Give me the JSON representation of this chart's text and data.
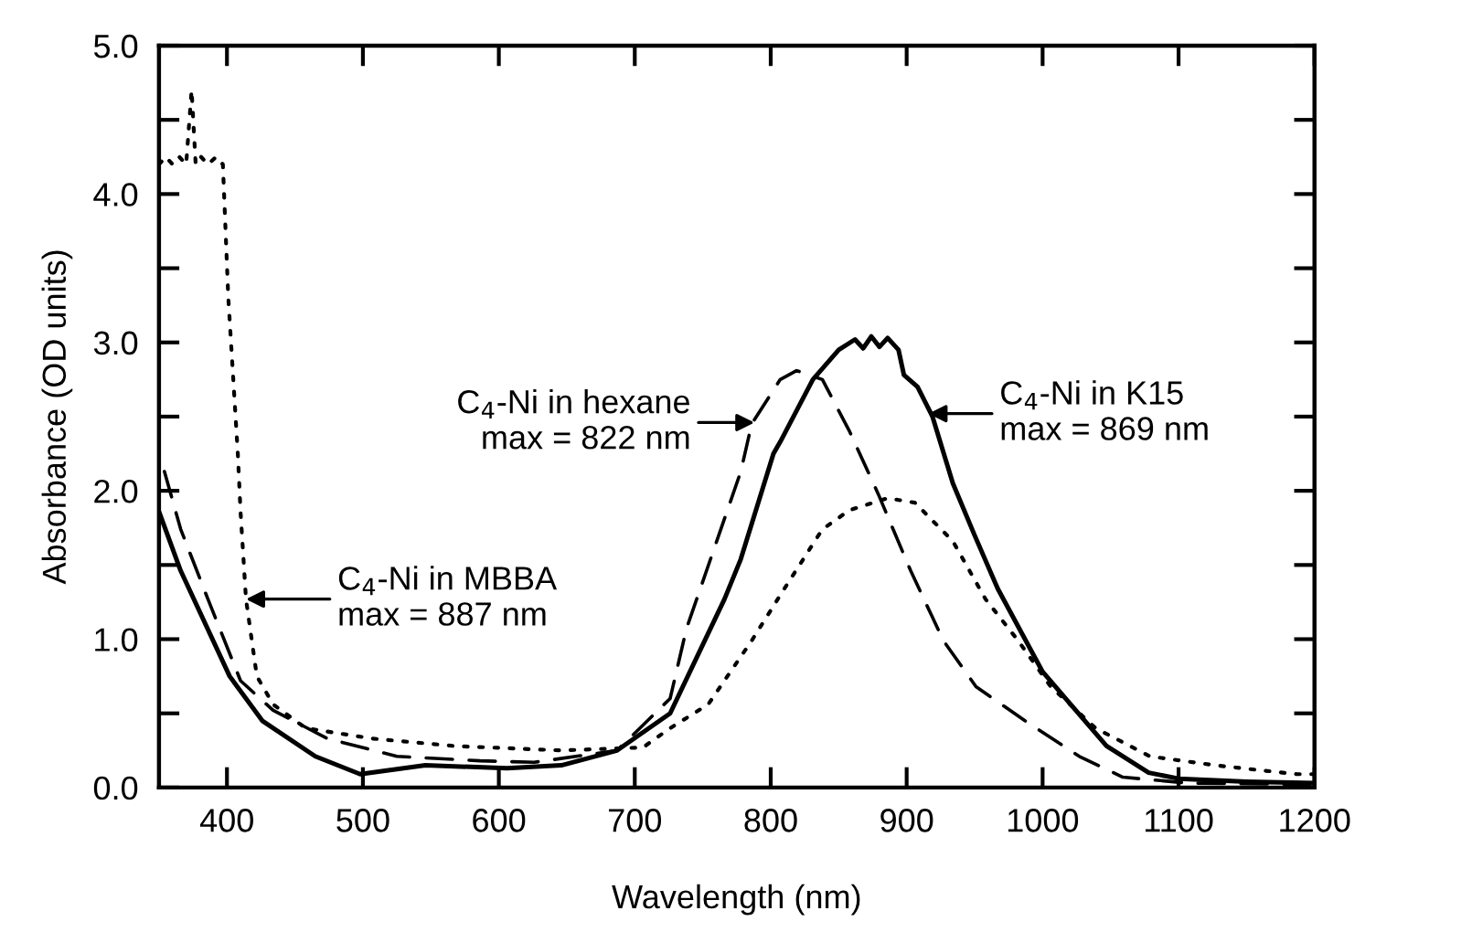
{
  "chart_data": {
    "type": "line",
    "xlabel": "Wavelength (nm)",
    "ylabel": "Absorbance (OD units)",
    "xlim": [
      350,
      1200
    ],
    "xticks": [
      400,
      500,
      600,
      700,
      800,
      900,
      1000,
      1100,
      1200
    ],
    "ylim": [
      0,
      5
    ],
    "yticks": [
      {
        "value": 0,
        "label": "0.0"
      },
      {
        "value": 0.5,
        "label": null
      },
      {
        "value": 1,
        "label": "1.0"
      },
      {
        "value": 1.5,
        "label": null
      },
      {
        "value": 2,
        "label": "2.0"
      },
      {
        "value": 2.5,
        "label": null
      },
      {
        "value": 3,
        "label": "3.0"
      },
      {
        "value": 3.5,
        "label": null
      },
      {
        "value": 4,
        "label": "4.0"
      },
      {
        "value": 4.5,
        "label": null
      },
      {
        "value": 5,
        "label": "5.0"
      }
    ],
    "grid": false,
    "marker": "none",
    "series": [
      {
        "color": "#000000",
        "line_style": "solid",
        "x": [
          350,
          366,
          402,
          426,
          465,
          498,
          546,
          606,
          646,
          687,
          726,
          766,
          778,
          802,
          807,
          831,
          850,
          862,
          868,
          874,
          880,
          886,
          894,
          898,
          908,
          919,
          934,
          950,
          967,
          1000,
          1047,
          1078,
          1100,
          1150,
          1200
        ],
        "values": [
          1.86,
          1.46,
          0.75,
          0.45,
          0.21,
          0.09,
          0.15,
          0.13,
          0.15,
          0.25,
          0.5,
          1.27,
          1.54,
          2.25,
          2.33,
          2.75,
          2.95,
          3.02,
          2.96,
          3.04,
          2.97,
          3.03,
          2.95,
          2.78,
          2.7,
          2.5,
          2.05,
          1.7,
          1.34,
          0.78,
          0.28,
          0.1,
          0.06,
          0.04,
          0.03
        ]
      },
      {
        "color": "#000000",
        "line_style": "dashed",
        "x": [
          354,
          366,
          386,
          410,
          434,
          474,
          525,
          586,
          626,
          687,
          726,
          738,
          778,
          786,
          807,
          819,
          838,
          858,
          879,
          903,
          927,
          951,
          987,
          1027,
          1059,
          1107,
          1200
        ],
        "values": [
          2.13,
          1.74,
          1.27,
          0.72,
          0.52,
          0.33,
          0.21,
          0.18,
          0.17,
          0.25,
          0.6,
          1.07,
          2.13,
          2.45,
          2.75,
          2.81,
          2.75,
          2.4,
          1.98,
          1.46,
          0.99,
          0.68,
          0.45,
          0.21,
          0.07,
          0.03,
          0.02
        ]
      },
      {
        "color": "#000000",
        "line_style": "dotted",
        "x": [
          350,
          355,
          360,
          365,
          370,
          374,
          377,
          381,
          386,
          392,
          397,
          401,
          405,
          408,
          410,
          414,
          422,
          434,
          458,
          507,
          567,
          646,
          706,
          726,
          754,
          786,
          810,
          838,
          858,
          886,
          906,
          934,
          958,
          982,
          1006,
          1039,
          1079,
          1127,
          1187,
          1200
        ],
        "values": [
          4.2,
          4.25,
          4.2,
          4.25,
          4.2,
          4.7,
          4.2,
          4.25,
          4.2,
          4.25,
          4.2,
          3.3,
          2.7,
          2.25,
          1.86,
          1.27,
          0.75,
          0.56,
          0.4,
          0.33,
          0.28,
          0.25,
          0.27,
          0.4,
          0.56,
          0.99,
          1.34,
          1.74,
          1.87,
          1.95,
          1.92,
          1.66,
          1.27,
          0.99,
          0.68,
          0.4,
          0.21,
          0.15,
          0.09,
          0.09
        ]
      }
    ],
    "annotations": [
      {
        "text": "C$_{4}$-Ni in hexane\nmax = 822 nm",
        "x": 788,
        "y": 2.46
      },
      {
        "text": "C$_{4}$-Ni in K15\nmax = 869 nm",
        "x": 916,
        "y": 2.52
      },
      {
        "text": "C$_{4}$-Ni in MBBA\nmax = 887 nm",
        "x": 414,
        "y": 1.27
      }
    ]
  }
}
